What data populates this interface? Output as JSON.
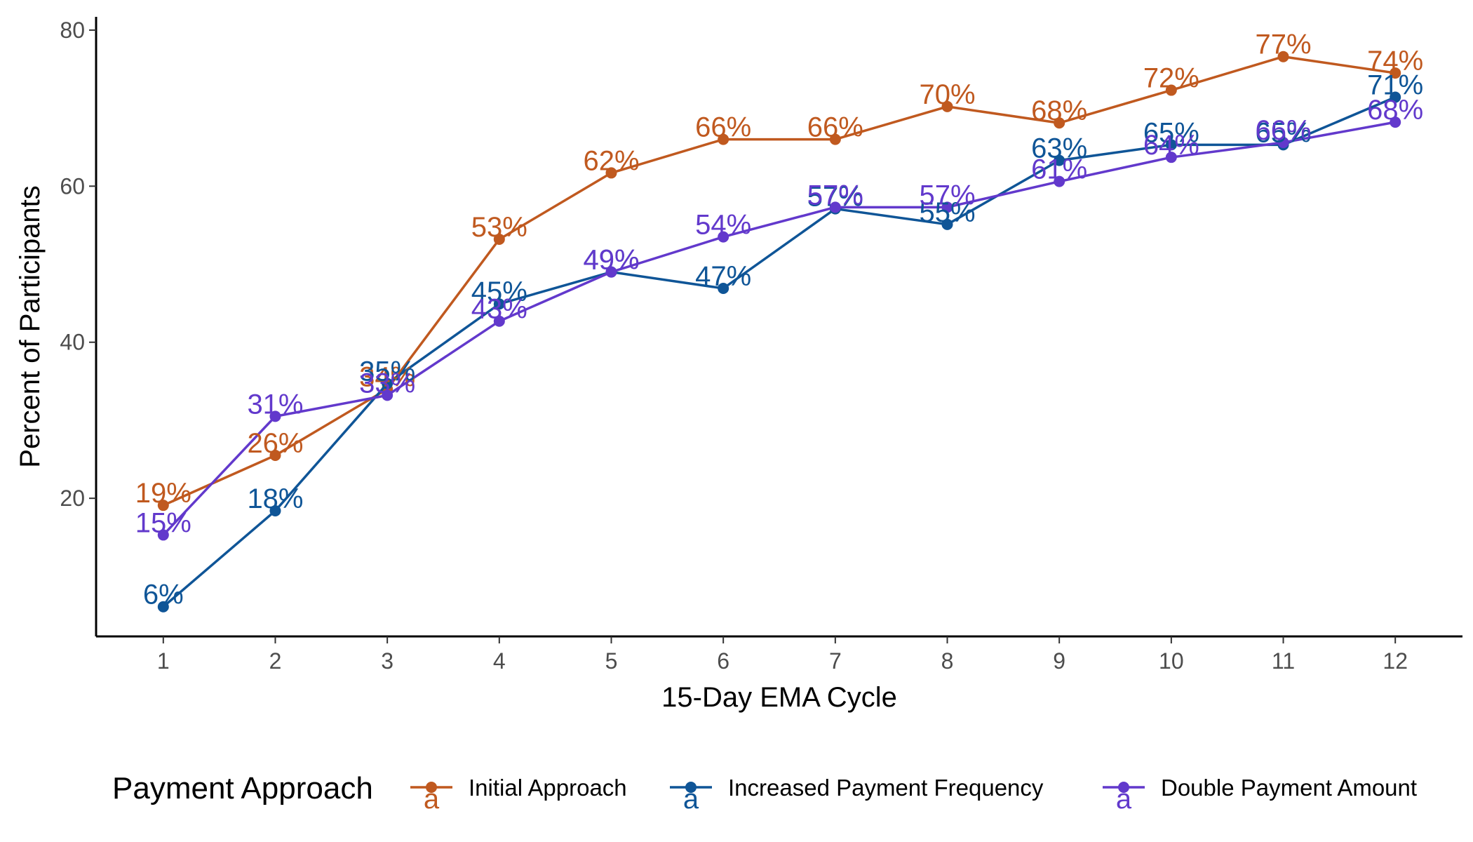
{
  "chart_data": {
    "type": "line",
    "xlabel": "15-Day EMA Cycle",
    "ylabel": "Percent of Participants",
    "x": [
      1,
      2,
      3,
      4,
      5,
      6,
      7,
      8,
      9,
      10,
      11,
      12
    ],
    "x_ticks": [
      "1",
      "2",
      "3",
      "4",
      "5",
      "6",
      "7",
      "8",
      "9",
      "10",
      "11",
      "12"
    ],
    "y_ticks": [
      "20",
      "40",
      "60",
      "80"
    ],
    "y_tick_values": [
      20,
      40,
      60,
      80
    ],
    "xlim": [
      0.4,
      12.6
    ],
    "ylim": [
      2.3,
      81.7
    ],
    "grid": false,
    "legend": {
      "title": "Payment Approach",
      "position": "bottom"
    },
    "series": [
      {
        "name": "Initial Approach",
        "color": "#C0591F",
        "values": [
          19.1,
          25.5,
          34.0,
          53.2,
          61.7,
          66.0,
          66.0,
          70.2,
          68.1,
          72.3,
          76.6,
          74.5
        ],
        "labels": [
          "19%",
          "26%",
          "34%",
          "53%",
          "62%",
          "66%",
          "66%",
          "70%",
          "68%",
          "72%",
          "77%",
          "74%"
        ]
      },
      {
        "name": "Increased Payment Frequency",
        "color": "#0F5597",
        "values": [
          6.1,
          18.4,
          34.7,
          44.9,
          49.0,
          46.9,
          57.1,
          55.1,
          63.3,
          65.3,
          65.3,
          71.4
        ],
        "labels": [
          "6%",
          "18%",
          "35%",
          "45%",
          "49%",
          "47%",
          "57%",
          "55%",
          "63%",
          "65%",
          "65%",
          "71%"
        ]
      },
      {
        "name": "Double Payment Amount",
        "color": "#6239CC",
        "values": [
          15.3,
          30.5,
          33.2,
          42.7,
          49.0,
          53.5,
          57.3,
          57.3,
          60.6,
          63.7,
          65.6,
          68.2
        ],
        "labels": [
          "15%",
          "31%",
          "33%",
          "43%",
          "49%",
          "54%",
          "57%",
          "57%",
          "61%",
          "64%",
          "66%",
          "68%"
        ]
      }
    ]
  }
}
